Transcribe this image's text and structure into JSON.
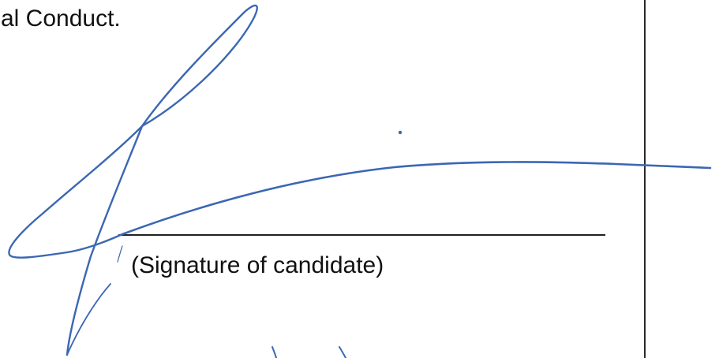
{
  "document": {
    "heading_fragment": "al Conduct.",
    "signature_caption": "(Signature of candidate)"
  },
  "signature": {
    "ink_color": "#3b67b3",
    "type": "handwritten-signature"
  }
}
